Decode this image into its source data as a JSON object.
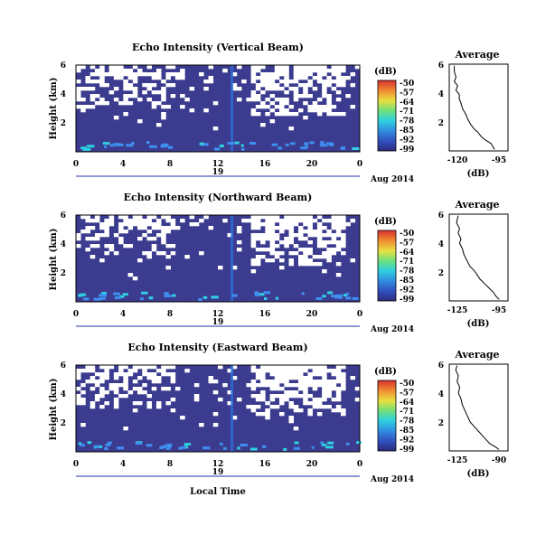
{
  "chart_data": [
    {
      "type": "heatmap",
      "title": "Echo Intensity (Vertical Beam)",
      "ylabel": "Height (km)",
      "xlabel": "",
      "xlim": [
        0,
        24
      ],
      "ylim": [
        0,
        6
      ],
      "xticks": [
        "0",
        "4",
        "8",
        "12",
        "16",
        "20",
        "0"
      ],
      "yticks": [
        "2",
        "4",
        "6"
      ],
      "date_day": "19",
      "date_label": "Aug 2014",
      "colorbar": {
        "label": "(dB)",
        "ticks": [
          "-50",
          "-57",
          "-64",
          "-71",
          "-78",
          "-85",
          "-92",
          "-99"
        ],
        "range": [
          -99,
          -50
        ]
      },
      "average": {
        "title": "Average",
        "xlabel": "(dB)",
        "xticks": [
          "-120",
          "-95"
        ],
        "xlim": [
          -125,
          -90
        ],
        "profile": [
          [
            -98,
            0.1
          ],
          [
            -99,
            0.3
          ],
          [
            -100,
            0.5
          ],
          [
            -104,
            0.8
          ],
          [
            -106,
            1.0
          ],
          [
            -108,
            1.3
          ],
          [
            -110,
            1.5
          ],
          [
            -112,
            1.8
          ],
          [
            -114,
            2.2
          ],
          [
            -115,
            2.5
          ],
          [
            -117,
            2.9
          ],
          [
            -118,
            3.3
          ],
          [
            -119,
            3.6
          ],
          [
            -119,
            3.9
          ],
          [
            -121,
            4.2
          ],
          [
            -120,
            4.5
          ],
          [
            -122,
            4.8
          ],
          [
            -121,
            5.1
          ],
          [
            -122,
            5.5
          ],
          [
            -122,
            5.9
          ]
        ]
      }
    },
    {
      "type": "heatmap",
      "title": "Echo Intensity (Northward Beam)",
      "ylabel": "Height (km)",
      "xlabel": "",
      "xlim": [
        0,
        24
      ],
      "ylim": [
        0,
        6
      ],
      "xticks": [
        "0",
        "4",
        "8",
        "12",
        "16",
        "20",
        "0"
      ],
      "yticks": [
        "2",
        "4",
        "6"
      ],
      "date_day": "19",
      "date_label": "Aug 2014",
      "colorbar": {
        "label": "(dB)",
        "ticks": [
          "-50",
          "-57",
          "-64",
          "-71",
          "-78",
          "-85",
          "-92",
          "-99"
        ],
        "range": [
          -99,
          -50
        ]
      },
      "average": {
        "title": "Average",
        "xlabel": "(dB)",
        "xticks": [
          "-125",
          "-95"
        ],
        "xlim": [
          -130,
          -90
        ],
        "profile": [
          [
            -96,
            0.1
          ],
          [
            -98,
            0.3
          ],
          [
            -100,
            0.6
          ],
          [
            -103,
            0.9
          ],
          [
            -106,
            1.2
          ],
          [
            -109,
            1.5
          ],
          [
            -111,
            1.8
          ],
          [
            -113,
            2.1
          ],
          [
            -116,
            2.4
          ],
          [
            -118,
            2.8
          ],
          [
            -120,
            3.2
          ],
          [
            -121,
            3.6
          ],
          [
            -123,
            4.0
          ],
          [
            -122,
            4.3
          ],
          [
            -124,
            4.7
          ],
          [
            -123,
            5.0
          ],
          [
            -125,
            5.4
          ],
          [
            -124,
            5.9
          ]
        ]
      }
    },
    {
      "type": "heatmap",
      "title": "Echo Intensity (Eastward Beam)",
      "ylabel": "Height (km)",
      "xlabel": "Local Time",
      "xlim": [
        0,
        24
      ],
      "ylim": [
        0,
        6
      ],
      "xticks": [
        "0",
        "4",
        "8",
        "12",
        "16",
        "20",
        "0"
      ],
      "yticks": [
        "2",
        "4",
        "6"
      ],
      "date_day": "19",
      "date_label": "Aug 2014",
      "colorbar": {
        "label": "(dB)",
        "ticks": [
          "-50",
          "-57",
          "-64",
          "-71",
          "-78",
          "-85",
          "-92",
          "-99"
        ],
        "range": [
          -99,
          -50
        ]
      },
      "average": {
        "title": "Average",
        "xlabel": "(dB)",
        "xticks": [
          "-125",
          "-90"
        ],
        "xlim": [
          -130,
          -85
        ],
        "profile": [
          [
            -92,
            0.1
          ],
          [
            -95,
            0.3
          ],
          [
            -99,
            0.5
          ],
          [
            -102,
            0.8
          ],
          [
            -105,
            1.1
          ],
          [
            -108,
            1.4
          ],
          [
            -111,
            1.7
          ],
          [
            -114,
            2.0
          ],
          [
            -116,
            2.4
          ],
          [
            -118,
            2.8
          ],
          [
            -120,
            3.2
          ],
          [
            -121,
            3.6
          ],
          [
            -123,
            4.0
          ],
          [
            -122,
            4.4
          ],
          [
            -124,
            4.8
          ],
          [
            -123,
            5.2
          ],
          [
            -125,
            5.6
          ],
          [
            -124,
            5.9
          ]
        ]
      }
    }
  ],
  "colors": {
    "background_low": "#3b3b8f",
    "no_data": "#ffffff",
    "scale": [
      "#2d2a7a",
      "#3150c0",
      "#2f8fe0",
      "#2fd0e0",
      "#6fe07a",
      "#e8e040",
      "#f08a30",
      "#d83030"
    ]
  }
}
